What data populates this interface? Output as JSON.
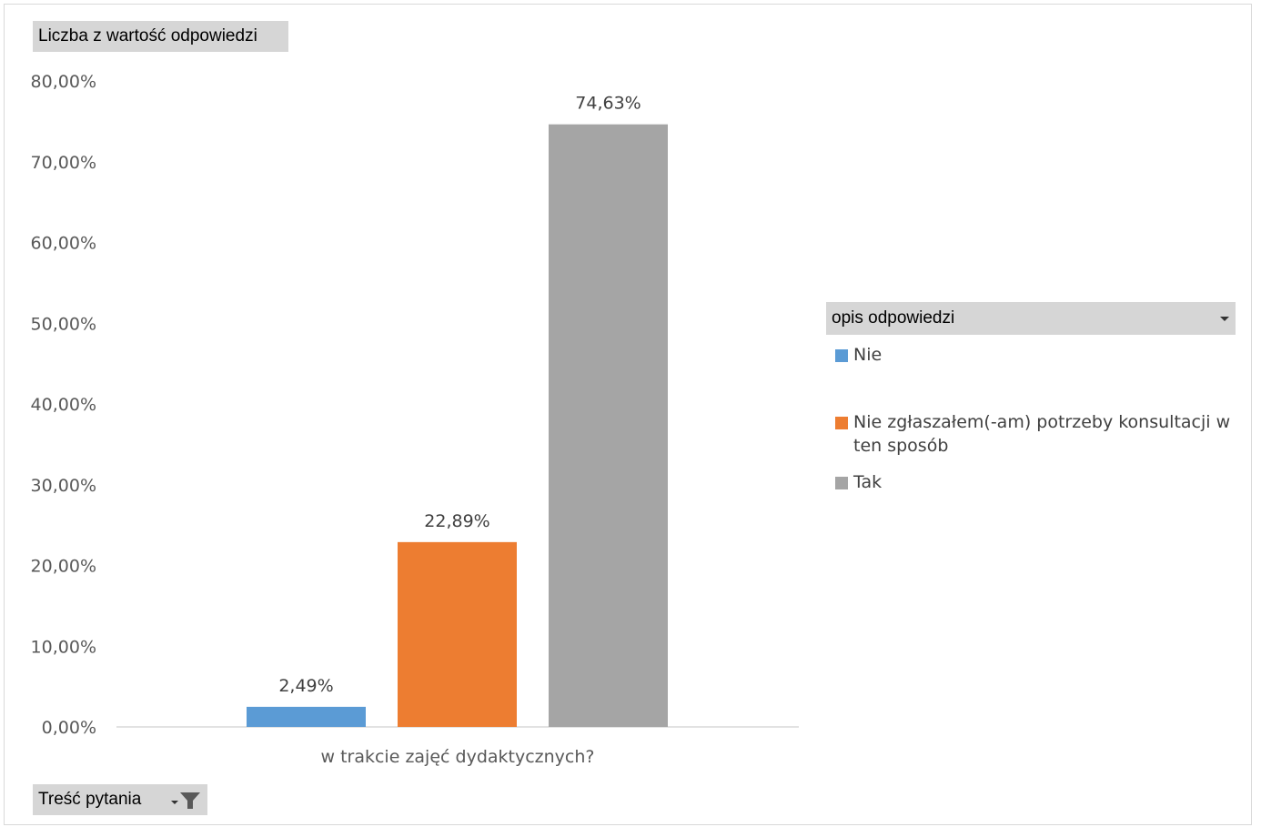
{
  "value_field_label": "Liczba z wartość odpowiedzi",
  "row_field_label": "Treść pytania",
  "legend_field_label": "opis odpowiedzi",
  "icons": {
    "value_dropdown": "chevron-down-icon",
    "filter": "filter-icon"
  },
  "colors": {
    "Nie": "#5b9bd5",
    "Nie zgłaszałem(-am) potrzeby konsultacji w ten sposób": "#ed7d31",
    "Tak": "#a5a5a5"
  },
  "chart_data": {
    "type": "bar",
    "categories": [
      "w trakcie zajęć dydaktycznych?"
    ],
    "series": [
      {
        "name": "Nie",
        "values": [
          2.49
        ],
        "label": "2,49%"
      },
      {
        "name": "Nie zgłaszałem(-am) potrzeby konsultacji w ten sposób",
        "values": [
          22.89
        ],
        "label": "22,89%"
      },
      {
        "name": "Tak",
        "values": [
          74.63
        ],
        "label": "74,63%"
      }
    ],
    "ylim": [
      0,
      80
    ],
    "yticks": [
      "0,00%",
      "10,00%",
      "20,00%",
      "30,00%",
      "40,00%",
      "50,00%",
      "60,00%",
      "70,00%",
      "80,00%"
    ],
    "grid": false,
    "legend_position": "right"
  }
}
